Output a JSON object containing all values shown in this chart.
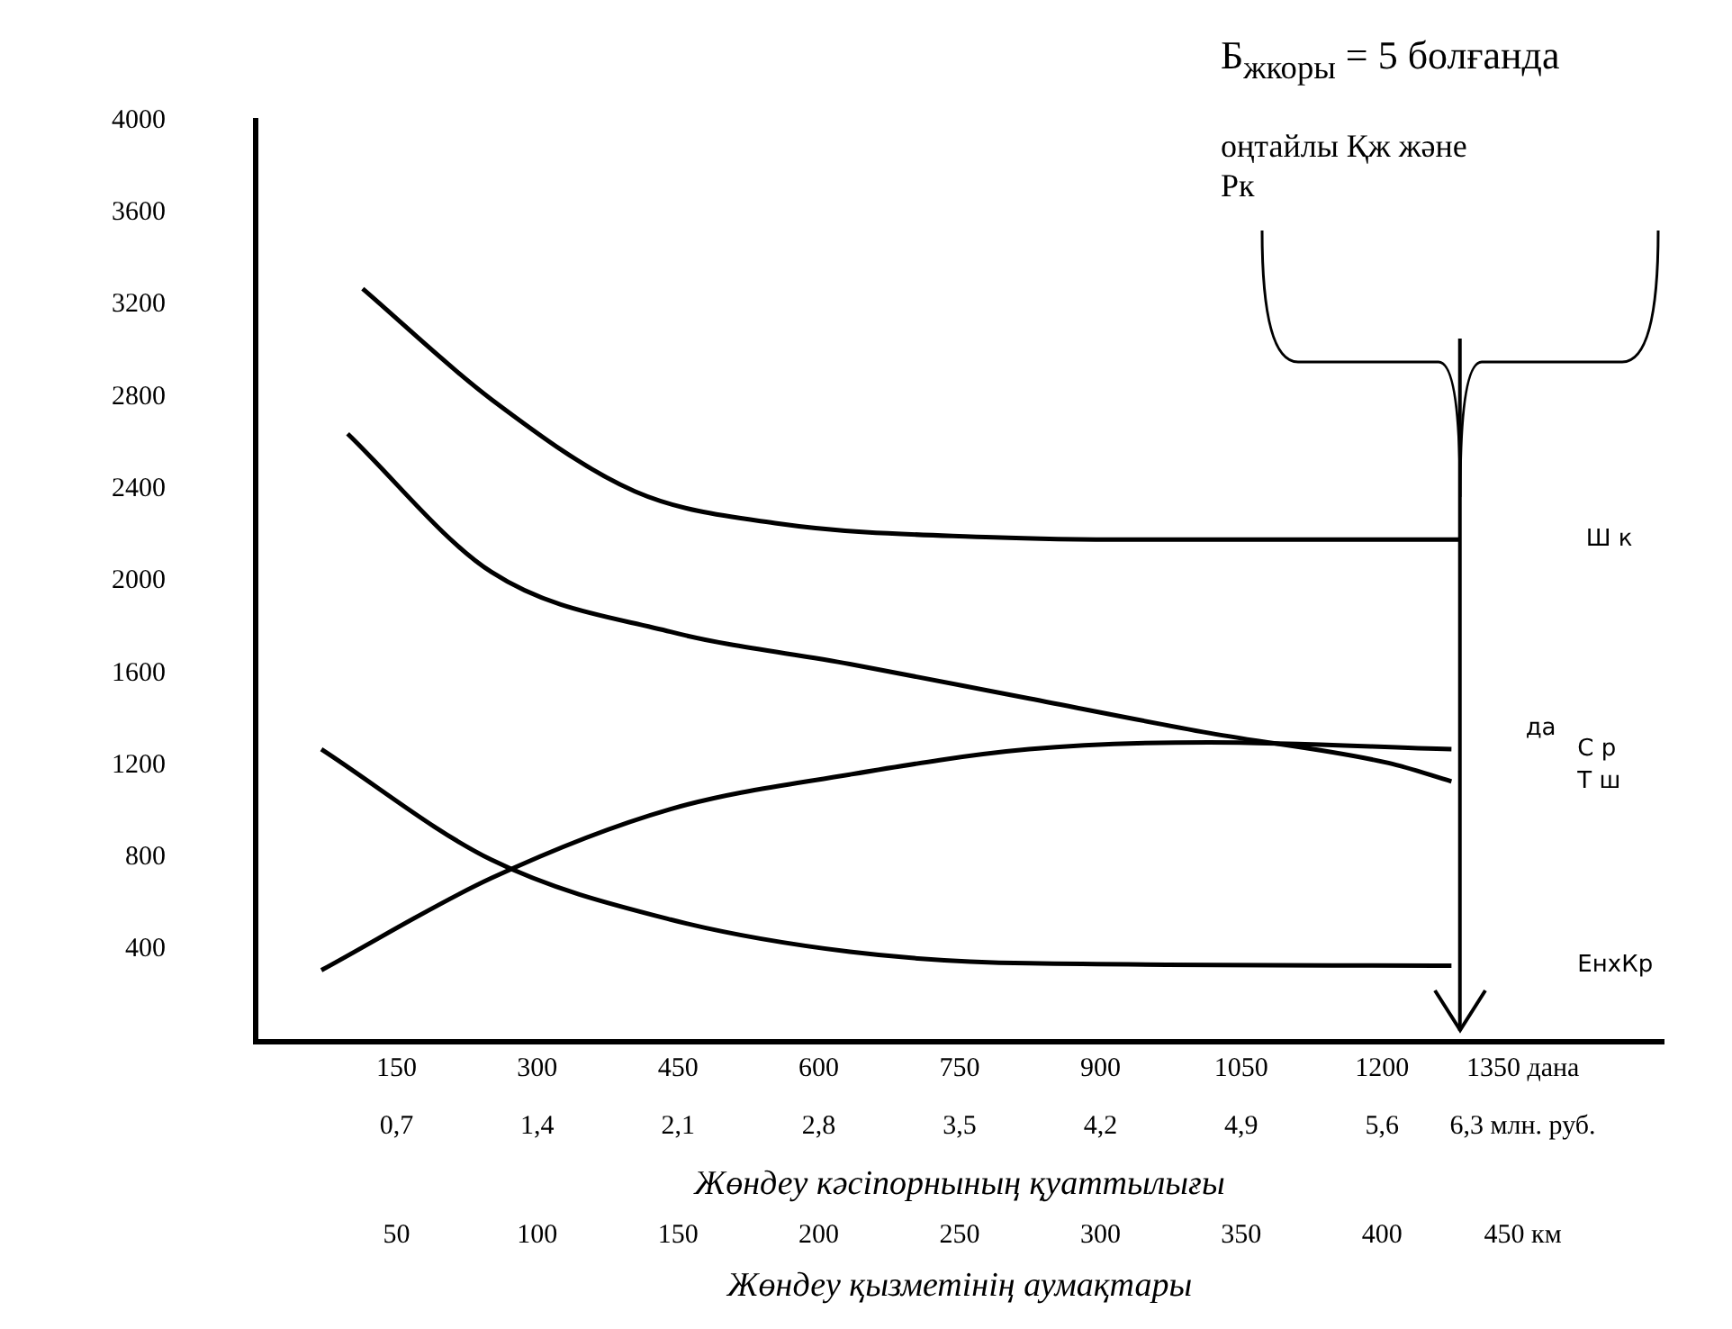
{
  "chart_data": {
    "type": "line",
    "title": "Б$_{жкоры}$ = 5 болғанда",
    "subtitle": "оңтайлы Қж және Рк",
    "xlabel": "Жөндеу кәсіпорнының қуаттылығы",
    "annotations": [
      "50",
      "100",
      "150",
      "200",
      "250",
      "300",
      "350",
      "400",
      "450 км",
      "Жөндеу қызметінің аумақтары",
      "да"
    ],
    "ref_lines": [
      {
        "axis": "x",
        "value": 1283
      }
    ],
    "xlim": [
      0,
      1500
    ],
    "xticks": [
      150,
      300,
      450,
      600,
      750,
      900,
      1050,
      1200,
      {
        "value": 1350,
        "label": "1350 дана"
      }
    ],
    "x2lim": [
      0,
      7
    ],
    "x2ticks": [
      {
        "value": 0.7,
        "label": "0,7"
      },
      {
        "value": 1.4,
        "label": "1,4"
      },
      {
        "value": 2.1,
        "label": "2,1"
      },
      {
        "value": 2.8,
        "label": "2,8"
      },
      {
        "value": 3.5,
        "label": "3,5"
      },
      {
        "value": 4.2,
        "label": "4,2"
      },
      {
        "value": 4.9,
        "label": "4,9"
      },
      {
        "value": 5.6,
        "label": "5,6"
      },
      {
        "value": 6.3,
        "label": "6,3 млн. руб."
      }
    ],
    "ylim": [
      0,
      4000
    ],
    "yticks": [
      400,
      800,
      1200,
      1600,
      2000,
      2400,
      2800,
      3200,
      3600,
      4000
    ],
    "grid": false,
    "legend": false,
    "marker": "none",
    "line_style": "solid",
    "series": [
      {
        "name": "Ш к",
        "color": "#000000",
        "x": [
          114,
          251,
          404,
          557,
          786,
          939,
          1283
        ],
        "values": [
          3270,
          2790,
          2390,
          2250,
          2190,
          2180,
          2180
        ]
      },
      {
        "name": "Т ш",
        "color": "#000000",
        "x": [
          98,
          251,
          442,
          633,
          824,
          1016,
          1207,
          1274
        ],
        "values": [
          2640,
          2040,
          1780,
          1640,
          1490,
          1340,
          1210,
          1130
        ]
      },
      {
        "name": "С р",
        "color": "#000000",
        "x": [
          70,
          251,
          442,
          633,
          824,
          1016,
          1274
        ],
        "values": [
          310,
          710,
          1010,
          1160,
          1270,
          1300,
          1270
        ]
      },
      {
        "name": "ЕнхКр",
        "color": "#000000",
        "x": [
          70,
          251,
          442,
          633,
          824,
          1274
        ],
        "values": [
          1270,
          790,
          530,
          390,
          340,
          330
        ]
      }
    ]
  }
}
